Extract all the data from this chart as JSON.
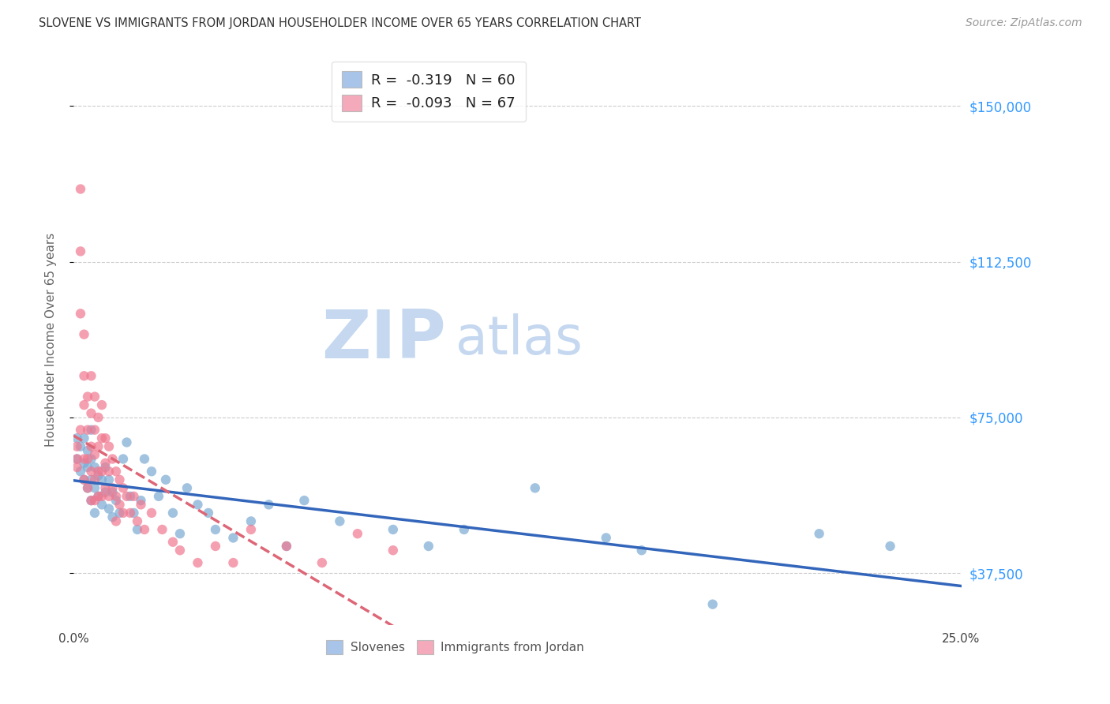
{
  "title": "SLOVENE VS IMMIGRANTS FROM JORDAN HOUSEHOLDER INCOME OVER 65 YEARS CORRELATION CHART",
  "source": "Source: ZipAtlas.com",
  "ylabel": "Householder Income Over 65 years",
  "xmin": 0.0,
  "xmax": 0.25,
  "ymin": 25000,
  "ymax": 162500,
  "yticks": [
    37500,
    75000,
    112500,
    150000
  ],
  "ytick_labels": [
    "$37,500",
    "$75,000",
    "$112,500",
    "$150,000"
  ],
  "xticks": [
    0.0,
    0.05,
    0.1,
    0.15,
    0.2,
    0.25
  ],
  "xtick_labels": [
    "0.0%",
    "",
    "",
    "",
    "",
    "25.0%"
  ],
  "slovene_R": -0.319,
  "slovene_N": 60,
  "jordan_R": -0.093,
  "jordan_N": 67,
  "slovene_color": "#a8c4e8",
  "jordan_color": "#f4aabb",
  "slovene_scatter_color": "#7baad4",
  "jordan_scatter_color": "#f07890",
  "trendline_slovene_color": "#3366bb",
  "trendline_jordan_color": "#dd6677",
  "background_color": "#ffffff",
  "watermark_zip": "ZIP",
  "watermark_atlas": "atlas",
  "watermark_color_zip": "#c5d8f0",
  "watermark_color_atlas": "#c5d8f0",
  "slovene_x": [
    0.001,
    0.001,
    0.002,
    0.002,
    0.003,
    0.003,
    0.003,
    0.004,
    0.004,
    0.004,
    0.005,
    0.005,
    0.005,
    0.005,
    0.006,
    0.006,
    0.006,
    0.007,
    0.007,
    0.008,
    0.008,
    0.009,
    0.009,
    0.01,
    0.01,
    0.011,
    0.011,
    0.012,
    0.013,
    0.014,
    0.015,
    0.016,
    0.017,
    0.018,
    0.019,
    0.02,
    0.022,
    0.024,
    0.026,
    0.028,
    0.03,
    0.032,
    0.035,
    0.038,
    0.04,
    0.045,
    0.05,
    0.055,
    0.06,
    0.065,
    0.075,
    0.09,
    0.1,
    0.11,
    0.13,
    0.15,
    0.16,
    0.18,
    0.21,
    0.23
  ],
  "slovene_y": [
    65000,
    70000,
    62000,
    68000,
    60000,
    64000,
    70000,
    58000,
    63000,
    67000,
    55000,
    60000,
    65000,
    72000,
    52000,
    58000,
    63000,
    56000,
    61000,
    54000,
    60000,
    57000,
    63000,
    53000,
    60000,
    51000,
    57000,
    55000,
    52000,
    65000,
    69000,
    56000,
    52000,
    48000,
    55000,
    65000,
    62000,
    56000,
    60000,
    52000,
    47000,
    58000,
    54000,
    52000,
    48000,
    46000,
    50000,
    54000,
    44000,
    55000,
    50000,
    48000,
    44000,
    48000,
    58000,
    46000,
    43000,
    30000,
    47000,
    44000
  ],
  "jordan_x": [
    0.001,
    0.001,
    0.001,
    0.002,
    0.002,
    0.002,
    0.002,
    0.003,
    0.003,
    0.003,
    0.003,
    0.003,
    0.004,
    0.004,
    0.004,
    0.004,
    0.005,
    0.005,
    0.005,
    0.005,
    0.005,
    0.006,
    0.006,
    0.006,
    0.006,
    0.006,
    0.007,
    0.007,
    0.007,
    0.007,
    0.008,
    0.008,
    0.008,
    0.008,
    0.009,
    0.009,
    0.009,
    0.01,
    0.01,
    0.01,
    0.011,
    0.011,
    0.012,
    0.012,
    0.012,
    0.013,
    0.013,
    0.014,
    0.014,
    0.015,
    0.016,
    0.017,
    0.018,
    0.019,
    0.02,
    0.022,
    0.025,
    0.028,
    0.03,
    0.035,
    0.04,
    0.045,
    0.05,
    0.06,
    0.07,
    0.08,
    0.09
  ],
  "jordan_y": [
    65000,
    68000,
    63000,
    130000,
    115000,
    100000,
    72000,
    95000,
    85000,
    78000,
    65000,
    60000,
    80000,
    72000,
    65000,
    58000,
    85000,
    76000,
    68000,
    62000,
    55000,
    80000,
    72000,
    66000,
    60000,
    55000,
    75000,
    68000,
    62000,
    56000,
    78000,
    70000,
    62000,
    56000,
    70000,
    64000,
    58000,
    68000,
    62000,
    56000,
    65000,
    58000,
    62000,
    56000,
    50000,
    60000,
    54000,
    58000,
    52000,
    56000,
    52000,
    56000,
    50000,
    54000,
    48000,
    52000,
    48000,
    45000,
    43000,
    40000,
    44000,
    40000,
    48000,
    44000,
    40000,
    47000,
    43000
  ]
}
